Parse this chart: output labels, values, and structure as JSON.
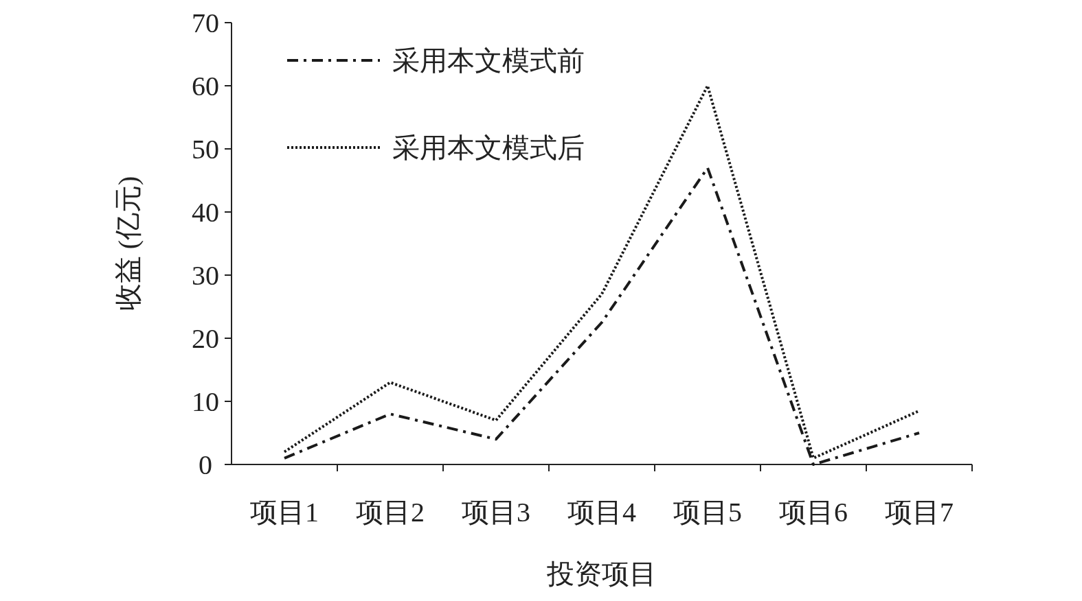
{
  "chart_data": {
    "type": "line",
    "xlabel": "投资项目",
    "ylabel": "收益 (亿元)",
    "categories": [
      "项目1",
      "项目2",
      "项目3",
      "项目4",
      "项目5",
      "项目6",
      "项目7"
    ],
    "series": [
      {
        "name": "采用本文模式前",
        "color": "#1a1a1a",
        "line_style": "dashdot",
        "values": [
          1,
          8,
          4,
          22.5,
          47,
          0,
          5
        ]
      },
      {
        "name": "采用本文模式后",
        "color": "#1a1a1a",
        "line_style": "dotted",
        "values": [
          2,
          13,
          7,
          27,
          60,
          1,
          8.5
        ]
      }
    ],
    "ylim": [
      0,
      70
    ],
    "yticks": [
      0,
      10,
      20,
      30,
      40,
      50,
      60,
      70
    ],
    "grid": false,
    "legend": "top left",
    "marker": "none"
  }
}
